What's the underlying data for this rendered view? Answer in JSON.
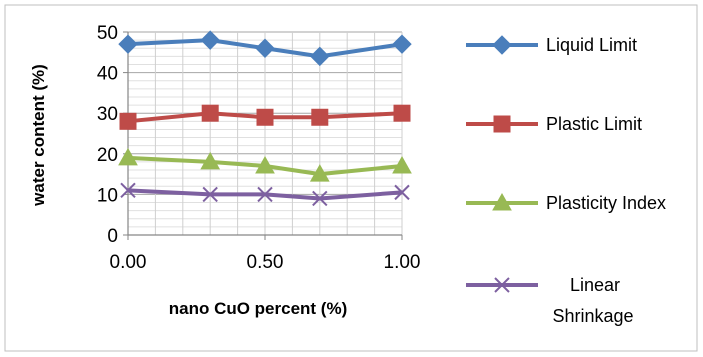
{
  "chart_data": {
    "type": "line",
    "xlabel": "nano CuO percent (%)",
    "ylabel": "water content (%)",
    "x": [
      0.0,
      0.3,
      0.5,
      0.7,
      1.0
    ],
    "xticks": [
      "0.00",
      "0.50",
      "1.00"
    ],
    "yticks": [
      "0",
      "10",
      "20",
      "30",
      "40",
      "50"
    ],
    "xlim": [
      0,
      1
    ],
    "ylim": [
      0,
      50
    ],
    "grid": true,
    "legend_position": "right",
    "series": [
      {
        "name": "Liquid Limit",
        "legend_lines": [
          "Liquid Limit"
        ],
        "values": [
          47,
          48,
          46,
          44,
          47
        ],
        "color": "#4A7EBB",
        "marker": "diamond"
      },
      {
        "name": "Plastic Limit",
        "legend_lines": [
          "Plastic Limit"
        ],
        "values": [
          28,
          30,
          29,
          29,
          30
        ],
        "color": "#BE4B48",
        "marker": "square"
      },
      {
        "name": "Plasticity Index",
        "legend_lines": [
          "Plasticity Index"
        ],
        "values": [
          19,
          18,
          17,
          15,
          17
        ],
        "color": "#98B954",
        "marker": "triangle"
      },
      {
        "name": "Linear Shrinkage",
        "legend_lines": [
          "Linear",
          "Shrinkage"
        ],
        "values": [
          11,
          10,
          10,
          9,
          10.5
        ],
        "color": "#7D60A0",
        "marker": "x"
      }
    ]
  }
}
